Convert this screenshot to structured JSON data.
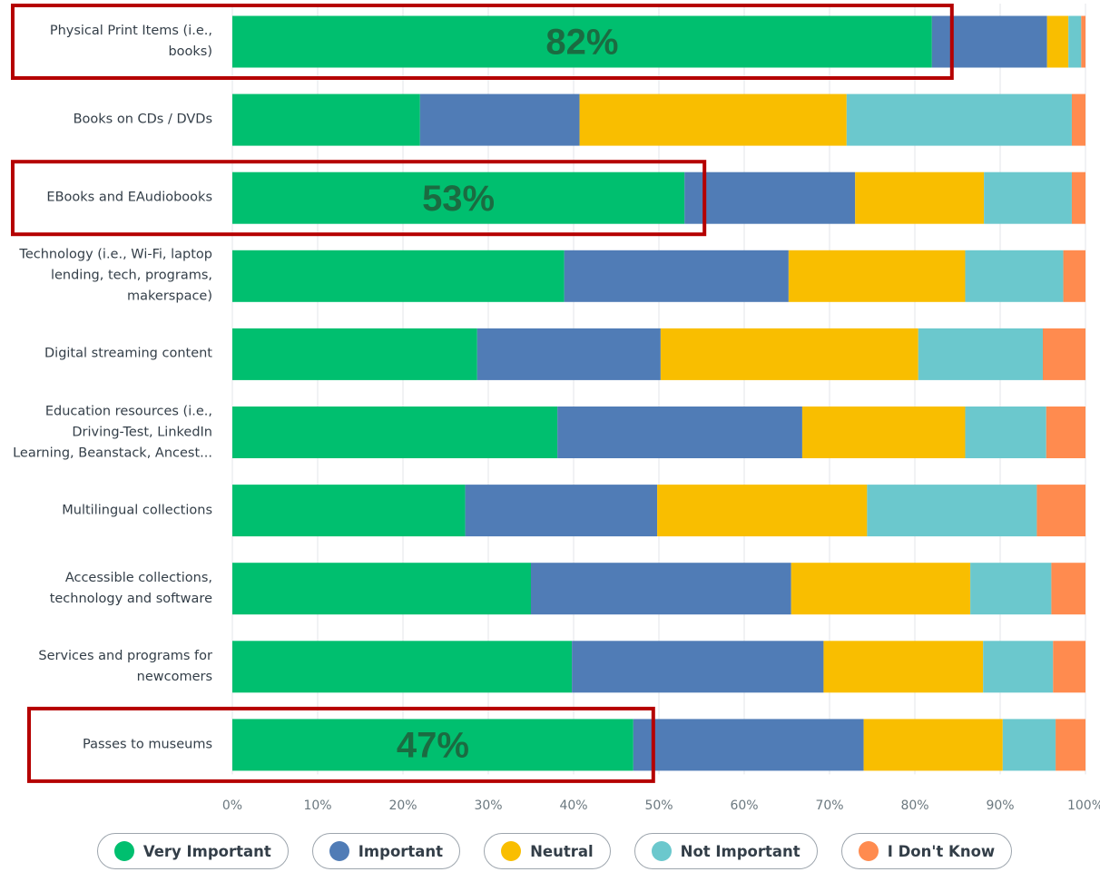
{
  "chart_data": {
    "type": "stacked-bar-horizontal",
    "categories": [
      "Physical Print Items (i.e., books)",
      "Books on CDs / DVDs",
      "EBooks and EAudiobooks",
      "Technology (i.e., Wi-Fi, laptop lending, tech, programs, makerspace)",
      "Digital streaming content",
      "Education resources (i.e., Driving-Test, LinkedIn Learning, Beanstack, Ancest...",
      "Multilingual collections",
      "Accessible collections, technology and software",
      "Services and programs for newcomers",
      "Passes to museums"
    ],
    "series": [
      {
        "name": "Very Important",
        "color": "#00bf6f",
        "values": [
          82,
          22,
          53,
          38.9,
          28.7,
          38.1,
          27.3,
          35,
          39.8,
          47
        ],
        "value_labels": [
          "82%",
          null,
          "53%",
          null,
          null,
          null,
          null,
          null,
          null,
          "47%"
        ]
      },
      {
        "name": "Important",
        "color": "#507cb6",
        "values": [
          13.5,
          18.7,
          20,
          26.3,
          21.5,
          28.7,
          22.5,
          30.5,
          29.5,
          27
        ]
      },
      {
        "name": "Neutral",
        "color": "#f9be00",
        "values": [
          2.5,
          31.3,
          15.1,
          20.7,
          30.2,
          19.1,
          24.6,
          21,
          18.7,
          16.3
        ]
      },
      {
        "name": "Not Important",
        "color": "#6bc8cd",
        "values": [
          1.5,
          26.4,
          10.3,
          11.5,
          14.6,
          9.5,
          19.9,
          9.5,
          8.2,
          6.2
        ]
      },
      {
        "name": "I Don't Know",
        "color": "#ff8b4f",
        "values": [
          0.5,
          1.6,
          1.6,
          2.6,
          5,
          4.6,
          5.7,
          4,
          3.8,
          3.5
        ]
      }
    ],
    "xlim": [
      0,
      100
    ],
    "xticks": [
      {
        "value": 0,
        "label": "0%"
      },
      {
        "value": 10,
        "label": "10%"
      },
      {
        "value": 20,
        "label": "20%"
      },
      {
        "value": 30,
        "label": "30%"
      },
      {
        "value": 40,
        "label": "40%"
      },
      {
        "value": 50,
        "label": "50%"
      },
      {
        "value": 60,
        "label": "60%"
      },
      {
        "value": 70,
        "label": "70%"
      },
      {
        "value": 80,
        "label": "80%"
      },
      {
        "value": 90,
        "label": "90%"
      },
      {
        "value": 100,
        "label": "100%"
      }
    ],
    "grid": true,
    "legend": "bottom"
  }
}
